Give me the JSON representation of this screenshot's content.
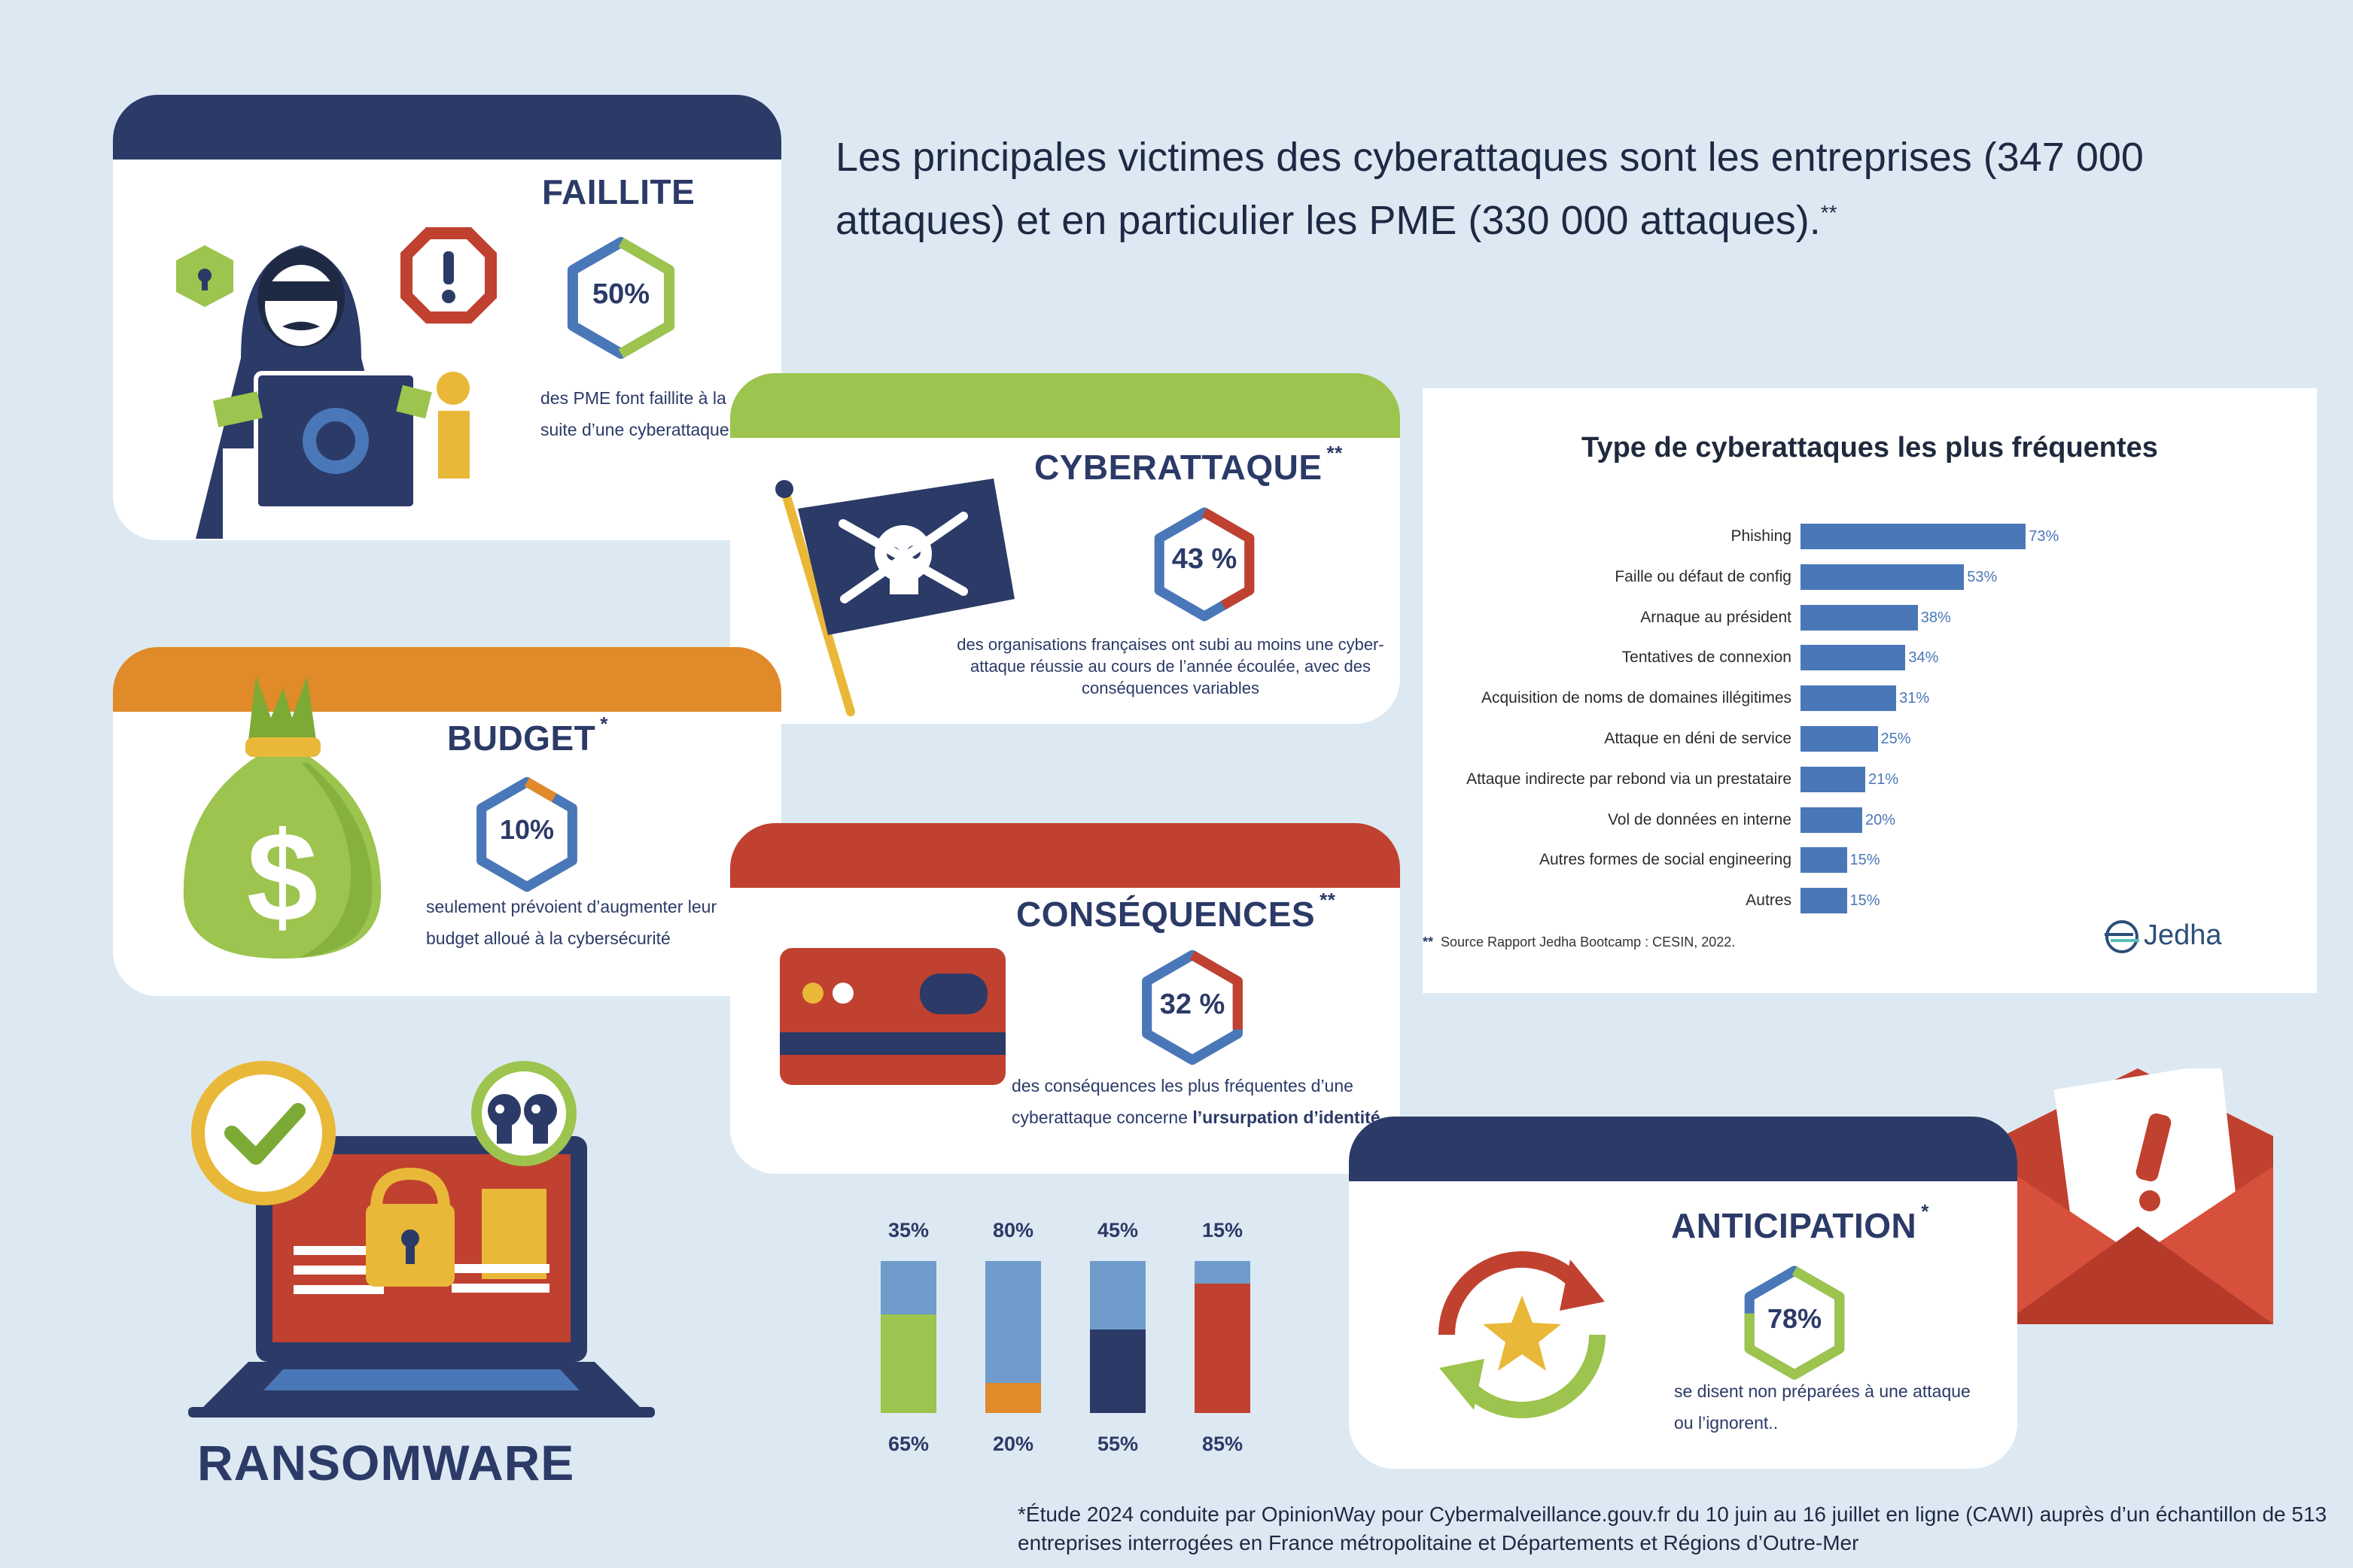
{
  "headline": {
    "text": "Les principales victimes des cyberattaques sont les entreprises (347 000 attaques) et en particulier les PME (330 000 attaques).",
    "mark": "**"
  },
  "colors": {
    "navy": "#2b3a67",
    "green": "#9cc44e",
    "orange": "#e08a2a",
    "red": "#c0412f",
    "blue": "#4a77b8",
    "lightblue": "#6f9ccb",
    "background": "#dde9f2"
  },
  "cards": {
    "faillite": {
      "title": "FAILLITE",
      "mark": "",
      "value": "50%",
      "text": "des PME font faillite à la suite d’une cyberattaque.",
      "fraction": 0.5
    },
    "cyberattaque": {
      "title": "CYBERATTAQUE",
      "mark": "**",
      "value": "43 %",
      "text": "des organisations françaises ont subi au moins une cyber-attaque réussie au cours de l’année écoulée, avec des conséquences variables",
      "fraction": 0.43
    },
    "budget": {
      "title": "BUDGET",
      "mark": "*",
      "value": "10%",
      "text": "seulement prévoient d’augmenter leur budget alloué à la cybersécurité",
      "fraction": 0.1
    },
    "consequences": {
      "title": "CONSÉQUENCES",
      "mark": "**",
      "value": "32 %",
      "text_start": "des conséquences les plus fréquentes d’une cyberattaque concerne",
      "text_bold": "l’ursurpation d’identité",
      "fraction": 0.32
    },
    "anticipation": {
      "title": "ANTICIPATION",
      "mark": "*",
      "value": "78%",
      "text": "se disent non préparées à une attaque ou l’ignorent..",
      "fraction": 0.78
    }
  },
  "chart_data": [
    {
      "type": "bar",
      "orientation": "horizontal",
      "title": "Type de cyberattaques les plus fréquentes",
      "categories": [
        "Phishing",
        "Faille ou défaut de config",
        "Arnaque au président",
        "Tentatives de connexion",
        "Acquisition de noms de domaines illégitimes",
        "Attaque en déni de service",
        "Attaque indirecte par rebond via un prestataire",
        "Vol de données en interne",
        "Autres formes de social engineering",
        "Autres"
      ],
      "values": [
        73,
        53,
        38,
        34,
        31,
        25,
        21,
        20,
        15,
        15
      ],
      "value_labels": [
        "73%",
        "53%",
        "38%",
        "34%",
        "31%",
        "25%",
        "21%",
        "20%",
        "15%",
        "15%"
      ],
      "xlim": [
        0,
        100
      ],
      "grid": false,
      "source": "Source Rapport Jedha Bootcamp : CESIN, 2022.",
      "source_mark": "**",
      "brand": "Jedha"
    },
    {
      "type": "bar",
      "stacked": true,
      "series": [
        {
          "values": [
            35,
            80,
            45,
            15
          ],
          "labels": [
            "35%",
            "80%",
            "45%",
            "15%"
          ],
          "color": "#6f9ccb"
        },
        {
          "values": [
            65,
            20,
            55,
            85
          ],
          "labels": [
            "65%",
            "20%",
            "55%",
            "85%"
          ],
          "colors": [
            "#9cc44e",
            "#e08a2a",
            "#2b3a67",
            "#c0412f"
          ]
        }
      ],
      "ylim": [
        0,
        100
      ]
    }
  ],
  "ransomware": {
    "label": "RANSOMWARE"
  },
  "footnote": "*Étude 2024 conduite par OpinionWay pour Cybermalveillance.gouv.fr du 10 juin au 16 juillet en ligne (CAWI) auprès d’un échantillon de 513 entreprises interrogées en France métropolitaine et Départements et Régions d’Outre-Mer"
}
